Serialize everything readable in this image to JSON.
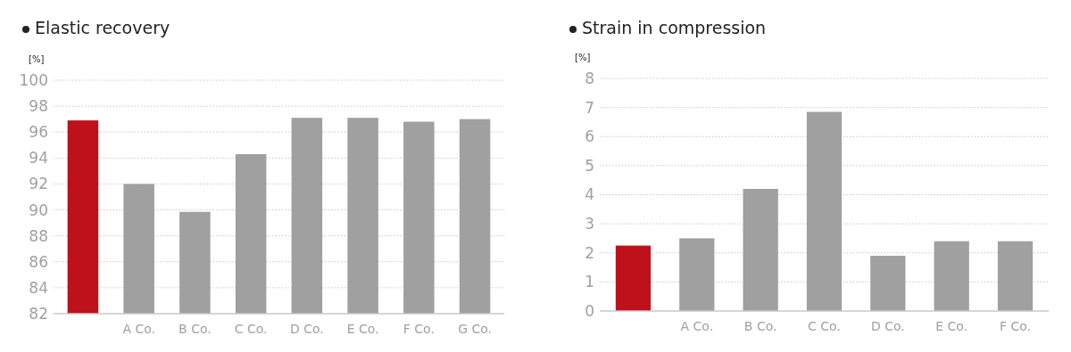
{
  "chart_data": [
    {
      "type": "bar",
      "title": "Elastic recovery",
      "ylabel": "[%]",
      "categories": [
        null,
        "A Co.",
        "B Co.",
        "C Co.",
        "D Co.",
        "E Co.",
        "F Co.",
        "G Co."
      ],
      "values": [
        96.9,
        92,
        89.85,
        94.3,
        97.1,
        97.1,
        96.8,
        97
      ],
      "colors": [
        "#be111b",
        "#a0a0a0",
        "#a0a0a0",
        "#a0a0a0",
        "#a0a0a0",
        "#a0a0a0",
        "#a0a0a0",
        "#a0a0a0"
      ],
      "ylim": [
        82,
        100
      ],
      "yticks": [
        82,
        84,
        86,
        88,
        90,
        92,
        94,
        96,
        98,
        100
      ],
      "grid": "y"
    },
    {
      "type": "bar",
      "title": "Strain in compression",
      "ylabel": "[%]",
      "categories": [
        null,
        "A Co.",
        "B Co.",
        "C Co.",
        "D Co.",
        "E Co.",
        "F Co."
      ],
      "values": [
        2.25,
        2.5,
        4.2,
        6.85,
        1.9,
        2.4,
        2.4
      ],
      "colors": [
        "#be111b",
        "#a0a0a0",
        "#a0a0a0",
        "#a0a0a0",
        "#a0a0a0",
        "#a0a0a0",
        "#a0a0a0"
      ],
      "ylim": [
        0,
        8
      ],
      "yticks": [
        0,
        1,
        2,
        3,
        4,
        5,
        6,
        7,
        8
      ],
      "grid": "y"
    }
  ]
}
